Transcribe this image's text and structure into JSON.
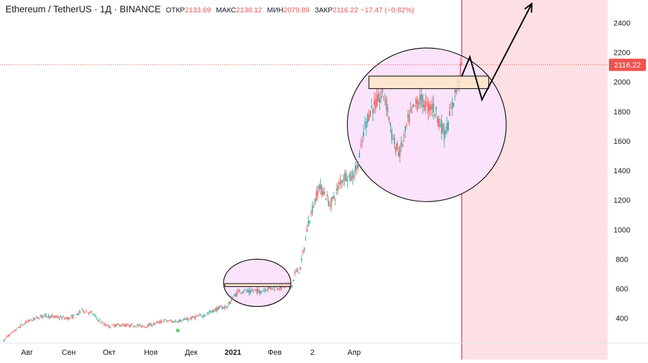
{
  "header": {
    "symbol": "Ethereum / TetherUS · 1Д · BINANCE",
    "open_label": "ОТКР",
    "open_value": "2133.69",
    "high_label": "МАКС",
    "high_value": "2138.12",
    "low_label": "МИН",
    "low_value": "2079.89",
    "close_label": "ЗАКР",
    "close_value": "2116.22",
    "change": "−17.47 (−0.82%)"
  },
  "price_tag": "2116.22",
  "colors": {
    "up": "#26a69a",
    "down": "#ef5350",
    "accent": "#ef5350",
    "forecast_zone": "#fde0e3",
    "circle_fill": "#fbe3fb",
    "resistance_box": "#fde5c6",
    "arrow": "#000000"
  },
  "chart_data": {
    "type": "candlestick",
    "title": "Ethereum / TetherUS · 1Д · BINANCE",
    "xlabel": "",
    "ylabel": "",
    "ylim": [
      250,
      2520
    ],
    "y_ticks": [
      400,
      600,
      800,
      1000,
      1200,
      1400,
      1600,
      1800,
      2000,
      2200,
      2400
    ],
    "x_ticks": [
      "Авг",
      "Сен",
      "Окт",
      "Ноя",
      "Дек",
      "2021",
      "Фев",
      "2",
      "Апр"
    ],
    "current_price": 2116.22,
    "anchors": [
      [
        0,
        250
      ],
      [
        2,
        275
      ],
      [
        6,
        300
      ],
      [
        12,
        345
      ],
      [
        18,
        380
      ],
      [
        24,
        400
      ],
      [
        30,
        420
      ],
      [
        36,
        410
      ],
      [
        42,
        405
      ],
      [
        48,
        400
      ],
      [
        54,
        420
      ],
      [
        58,
        455
      ],
      [
        62,
        445
      ],
      [
        66,
        430
      ],
      [
        70,
        390
      ],
      [
        74,
        360
      ],
      [
        78,
        345
      ],
      [
        82,
        352
      ],
      [
        86,
        355
      ],
      [
        92,
        350
      ],
      [
        98,
        352
      ],
      [
        104,
        345
      ],
      [
        110,
        358
      ],
      [
        116,
        375
      ],
      [
        120,
        385
      ],
      [
        126,
        378
      ],
      [
        130,
        385
      ],
      [
        136,
        392
      ],
      [
        142,
        408
      ],
      [
        148,
        420
      ],
      [
        154,
        445
      ],
      [
        160,
        470
      ],
      [
        166,
        480
      ],
      [
        170,
        540
      ],
      [
        174,
        580
      ],
      [
        178,
        590
      ],
      [
        182,
        575
      ],
      [
        186,
        590
      ],
      [
        190,
        580
      ],
      [
        194,
        600
      ],
      [
        198,
        605
      ],
      [
        202,
        608
      ],
      [
        206,
        612
      ],
      [
        210,
        620
      ],
      [
        214,
        620
      ],
      [
        216,
        700
      ],
      [
        220,
        740
      ],
      [
        223,
        880
      ],
      [
        226,
        1050
      ],
      [
        230,
        1170
      ],
      [
        234,
        1290
      ],
      [
        238,
        1250
      ],
      [
        242,
        1170
      ],
      [
        246,
        1230
      ],
      [
        250,
        1330
      ],
      [
        254,
        1370
      ],
      [
        258,
        1350
      ],
      [
        262,
        1420
      ],
      [
        265,
        1540
      ],
      [
        268,
        1700
      ],
      [
        272,
        1810
      ],
      [
        276,
        1850
      ],
      [
        280,
        1900
      ],
      [
        282,
        1920
      ],
      [
        285,
        1820
      ],
      [
        288,
        1640
      ],
      [
        291,
        1560
      ],
      [
        294,
        1520
      ],
      [
        297,
        1620
      ],
      [
        300,
        1730
      ],
      [
        303,
        1800
      ],
      [
        306,
        1850
      ],
      [
        309,
        1880
      ],
      [
        312,
        1860
      ],
      [
        315,
        1825
      ],
      [
        318,
        1840
      ],
      [
        321,
        1790
      ],
      [
        324,
        1720
      ],
      [
        327,
        1650
      ],
      [
        330,
        1720
      ],
      [
        333,
        1840
      ],
      [
        336,
        1950
      ],
      [
        338,
        2030
      ],
      [
        340,
        2116
      ]
    ],
    "resistance_zones": [
      {
        "from_day": 164,
        "to_day": 213,
        "low": 615,
        "high": 635
      },
      {
        "from_day": 271,
        "to_day": 360,
        "low": 1955,
        "high": 2040
      }
    ],
    "highlight_circles": [
      {
        "from_day": 163,
        "to_day": 213,
        "low": 480,
        "high": 800
      },
      {
        "from_day": 255,
        "to_day": 373,
        "low": 1190,
        "high": 2230
      }
    ],
    "forecast_path": [
      [
        340,
        2040
      ],
      [
        346,
        2170
      ],
      [
        355,
        1880
      ],
      [
        392,
        2530
      ]
    ],
    "forecast_zone_start_day": 340
  }
}
